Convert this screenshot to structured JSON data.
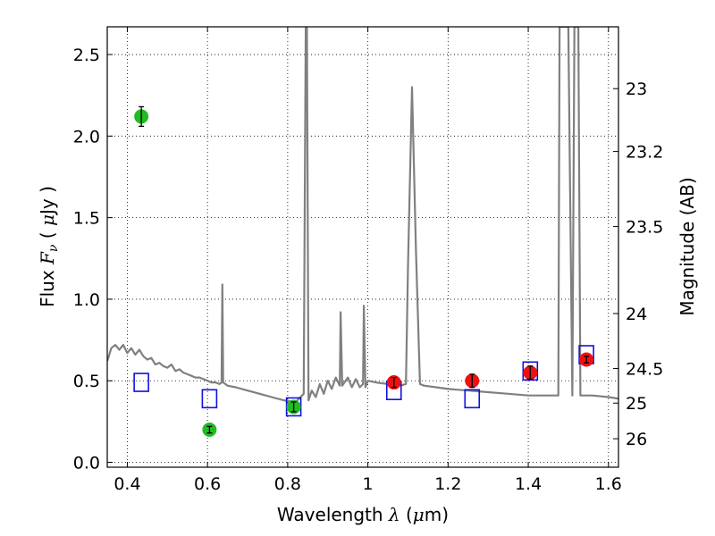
{
  "chart_data": {
    "type": "scatter",
    "title": "",
    "xlabel": "Wavelength  λ (μm)",
    "ylabel": "Flux  F_ν  ( μJy )",
    "y2label": "Magnitude (AB)",
    "xlim": [
      0.35,
      1.625
    ],
    "ylim": [
      -0.03,
      2.67
    ],
    "grid": true,
    "x_ticks": [
      0.4,
      0.6,
      0.8,
      1.0,
      1.2,
      1.4,
      1.6
    ],
    "x_tick_labels": [
      "0.4",
      "0.6",
      "0.8",
      "1",
      "1.2",
      "1.4",
      "1.6"
    ],
    "y_ticks": [
      0.0,
      0.5,
      1.0,
      1.5,
      2.0,
      2.5
    ],
    "y_tick_labels": [
      "0.0",
      "0.5",
      "1.0",
      "1.5",
      "2.0",
      "2.5"
    ],
    "magnitude_ticks": [
      {
        "label": "23",
        "mag": 23.0
      },
      {
        "label": "23.2",
        "mag": 23.2
      },
      {
        "label": "23.5",
        "mag": 23.5
      },
      {
        "label": "24",
        "mag": 24.0
      },
      {
        "label": "24.5",
        "mag": 24.5
      },
      {
        "label": "25",
        "mag": 25.0
      },
      {
        "label": "26",
        "mag": 26.0
      }
    ],
    "colors": {
      "template": "#808080",
      "green": "#22bb22",
      "red": "#ee1111",
      "model": "#1111dd"
    },
    "series": [
      {
        "kind": "line",
        "points": [
          [
            0.35,
            0.62
          ],
          [
            0.36,
            0.7
          ],
          [
            0.37,
            0.72
          ],
          [
            0.38,
            0.69
          ],
          [
            0.39,
            0.72
          ],
          [
            0.4,
            0.67
          ],
          [
            0.41,
            0.7
          ],
          [
            0.42,
            0.66
          ],
          [
            0.43,
            0.69
          ],
          [
            0.44,
            0.65
          ],
          [
            0.45,
            0.63
          ],
          [
            0.46,
            0.64
          ],
          [
            0.47,
            0.6
          ],
          [
            0.48,
            0.61
          ],
          [
            0.49,
            0.59
          ],
          [
            0.5,
            0.58
          ],
          [
            0.51,
            0.6
          ],
          [
            0.52,
            0.56
          ],
          [
            0.53,
            0.57
          ],
          [
            0.54,
            0.55
          ],
          [
            0.55,
            0.54
          ],
          [
            0.56,
            0.53
          ],
          [
            0.57,
            0.52
          ],
          [
            0.58,
            0.52
          ],
          [
            0.59,
            0.51
          ],
          [
            0.6,
            0.5
          ],
          [
            0.61,
            0.49
          ],
          [
            0.62,
            0.49
          ],
          [
            0.63,
            0.48
          ],
          [
            0.635,
            0.49
          ],
          [
            0.637,
            1.09
          ],
          [
            0.639,
            0.49
          ],
          [
            0.65,
            0.47
          ],
          [
            0.67,
            0.46
          ],
          [
            0.7,
            0.44
          ],
          [
            0.73,
            0.42
          ],
          [
            0.76,
            0.4
          ],
          [
            0.79,
            0.38
          ],
          [
            0.82,
            0.37
          ],
          [
            0.84,
            0.42
          ],
          [
            0.845,
            2.67
          ],
          [
            0.848,
            2.67
          ],
          [
            0.852,
            0.38
          ],
          [
            0.86,
            0.44
          ],
          [
            0.87,
            0.4
          ],
          [
            0.88,
            0.48
          ],
          [
            0.89,
            0.42
          ],
          [
            0.9,
            0.5
          ],
          [
            0.91,
            0.45
          ],
          [
            0.92,
            0.52
          ],
          [
            0.93,
            0.47
          ],
          [
            0.932,
            0.92
          ],
          [
            0.936,
            0.47
          ],
          [
            0.95,
            0.52
          ],
          [
            0.96,
            0.46
          ],
          [
            0.97,
            0.51
          ],
          [
            0.98,
            0.46
          ],
          [
            0.988,
            0.48
          ],
          [
            0.99,
            0.96
          ],
          [
            0.994,
            0.46
          ],
          [
            1.0,
            0.5
          ],
          [
            1.02,
            0.49
          ],
          [
            1.05,
            0.48
          ],
          [
            1.08,
            0.47
          ],
          [
            1.095,
            0.48
          ],
          [
            1.1,
            1.2
          ],
          [
            1.11,
            2.3
          ],
          [
            1.12,
            1.3
          ],
          [
            1.13,
            0.48
          ],
          [
            1.14,
            0.47
          ],
          [
            1.17,
            0.46
          ],
          [
            1.2,
            0.45
          ],
          [
            1.25,
            0.44
          ],
          [
            1.3,
            0.43
          ],
          [
            1.35,
            0.42
          ],
          [
            1.4,
            0.41
          ],
          [
            1.45,
            0.41
          ],
          [
            1.475,
            0.41
          ],
          [
            1.478,
            2.67
          ],
          [
            1.48,
            2.67
          ],
          [
            1.49,
            2.67
          ],
          [
            1.5,
            2.67
          ],
          [
            1.505,
            1.5
          ],
          [
            1.51,
            0.41
          ],
          [
            1.515,
            2.67
          ],
          [
            1.525,
            2.67
          ],
          [
            1.53,
            0.41
          ],
          [
            1.56,
            0.41
          ],
          [
            1.6,
            0.4
          ],
          [
            1.625,
            0.39
          ]
        ]
      },
      {
        "kind": "observed",
        "color_key": "green",
        "points": [
          {
            "x": 0.435,
            "y": 2.12,
            "err": 0.06
          },
          {
            "x": 0.605,
            "y": 0.2,
            "err": 0.02
          },
          {
            "x": 0.815,
            "y": 0.34,
            "err": 0.03
          }
        ]
      },
      {
        "kind": "observed",
        "color_key": "red",
        "points": [
          {
            "x": 1.065,
            "y": 0.49,
            "err": 0.03
          },
          {
            "x": 1.26,
            "y": 0.5,
            "err": 0.04
          },
          {
            "x": 1.405,
            "y": 0.55,
            "err": 0.04
          },
          {
            "x": 1.545,
            "y": 0.63,
            "err": 0.02
          }
        ]
      },
      {
        "kind": "model",
        "color_key": "model",
        "points": [
          {
            "x": 0.435,
            "y": 0.49
          },
          {
            "x": 0.605,
            "y": 0.39
          },
          {
            "x": 0.815,
            "y": 0.34
          },
          {
            "x": 1.065,
            "y": 0.44
          },
          {
            "x": 1.26,
            "y": 0.39
          },
          {
            "x": 1.405,
            "y": 0.56
          },
          {
            "x": 1.545,
            "y": 0.66
          }
        ]
      }
    ]
  }
}
